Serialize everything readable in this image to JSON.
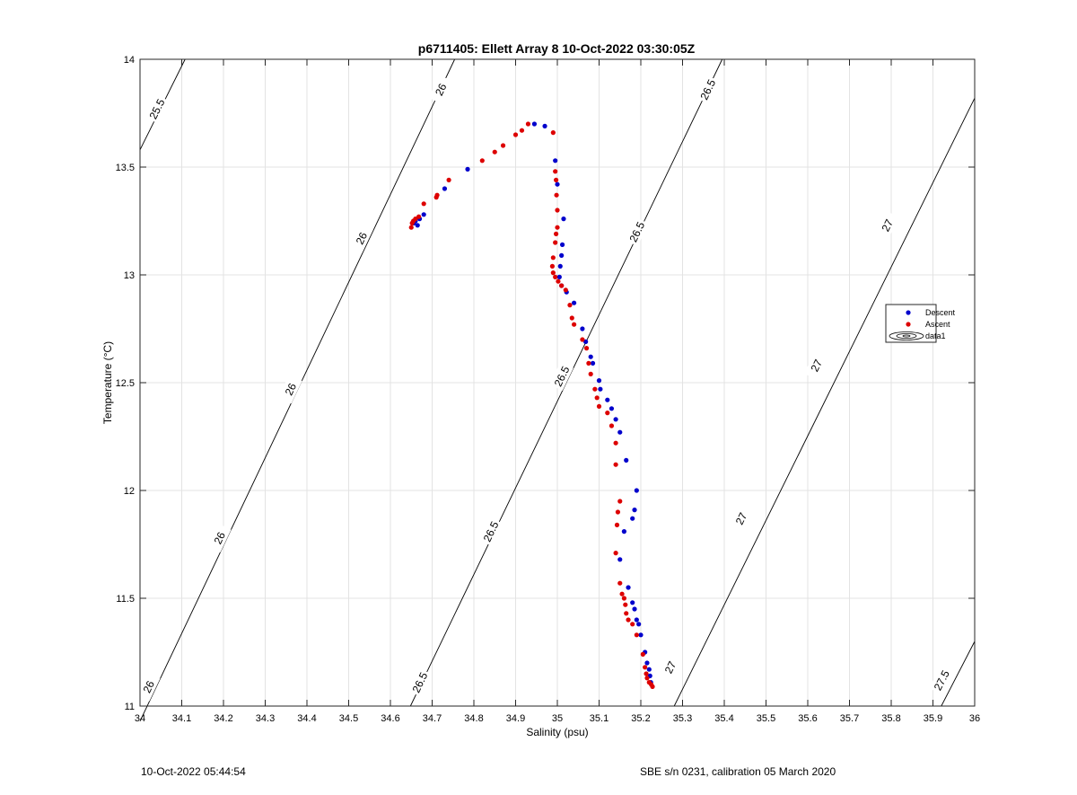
{
  "chart_data": {
    "type": "scatter",
    "title": "p6711405: Ellett Array 8 10-Oct-2022 03:30:05Z",
    "xlabel": "Salinity (psu)",
    "ylabel": "Temperature (°C)",
    "xlim": [
      34,
      36
    ],
    "ylim": [
      11,
      14
    ],
    "xticks": [
      34,
      34.1,
      34.2,
      34.3,
      34.4,
      34.5,
      34.6,
      34.7,
      34.8,
      34.9,
      35,
      35.1,
      35.2,
      35.3,
      35.4,
      35.5,
      35.6,
      35.7,
      35.8,
      35.9,
      36
    ],
    "xtick_labels": [
      "34",
      "34.1",
      "34.2",
      "34.3",
      "34.4",
      "34.5",
      "34.6",
      "34.7",
      "34.8",
      "34.9",
      "35",
      "35.1",
      "35.2",
      "35.3",
      "35.4",
      "35.5",
      "35.6",
      "35.7",
      "35.8",
      "35.9",
      "36"
    ],
    "yticks": [
      11,
      11.5,
      12,
      12.5,
      13,
      13.5,
      14
    ],
    "ytick_labels": [
      "11",
      "11.5",
      "12",
      "12.5",
      "13",
      "13.5",
      "14"
    ],
    "grid": true,
    "legend_position": "right",
    "legend": [
      "Descent",
      "Ascent",
      "data1"
    ],
    "colors": {
      "descent": "#0000cc",
      "ascent": "#dd0000",
      "contour": "#000000",
      "grid": "#e3e3e3"
    },
    "contours": [
      {
        "level_label": "25.5",
        "points": [
          [
            34.0,
            13.58
          ],
          [
            34.108,
            14.0
          ]
        ],
        "labels": [
          [
            34.04,
            13.77
          ]
        ]
      },
      {
        "level_label": "26",
        "points": [
          [
            34.0,
            10.93
          ],
          [
            34.754,
            14.0
          ]
        ],
        "labels": [
          [
            34.02,
            11.09
          ],
          [
            34.19,
            11.78
          ],
          [
            34.36,
            12.47
          ],
          [
            34.53,
            13.17
          ],
          [
            34.72,
            13.86
          ]
        ]
      },
      {
        "level_label": "26.5",
        "points": [
          [
            34.648,
            11.0
          ],
          [
            35.395,
            14.0
          ]
        ],
        "labels": [
          [
            34.67,
            11.11
          ],
          [
            34.84,
            11.81
          ],
          [
            35.01,
            12.53
          ],
          [
            35.19,
            13.2
          ],
          [
            35.36,
            13.86
          ]
        ]
      },
      {
        "level_label": "27",
        "points": [
          [
            35.28,
            11.0
          ],
          [
            36.0,
            13.82
          ]
        ],
        "labels": [
          [
            35.27,
            11.18
          ],
          [
            35.44,
            11.87
          ],
          [
            35.62,
            12.58
          ],
          [
            35.79,
            13.23
          ]
        ]
      },
      {
        "level_label": "27.5",
        "points": [
          [
            35.92,
            11.0
          ],
          [
            36.0,
            11.3
          ]
        ],
        "labels": [
          [
            35.92,
            11.12
          ]
        ]
      }
    ],
    "series": [
      {
        "name": "Descent",
        "points": [
          [
            34.656,
            13.24
          ],
          [
            34.66,
            13.25
          ],
          [
            34.665,
            13.23
          ],
          [
            34.67,
            13.26
          ],
          [
            34.68,
            13.28
          ],
          [
            34.73,
            13.4
          ],
          [
            34.785,
            13.49
          ],
          [
            34.945,
            13.7
          ],
          [
            34.97,
            13.69
          ],
          [
            34.995,
            13.53
          ],
          [
            35.0,
            13.42
          ],
          [
            35.015,
            13.26
          ],
          [
            35.012,
            13.14
          ],
          [
            35.01,
            13.09
          ],
          [
            35.007,
            13.04
          ],
          [
            35.005,
            12.99
          ],
          [
            35.01,
            12.95
          ],
          [
            35.022,
            12.92
          ],
          [
            35.04,
            12.87
          ],
          [
            35.06,
            12.75
          ],
          [
            35.068,
            12.69
          ],
          [
            35.08,
            12.62
          ],
          [
            35.085,
            12.59
          ],
          [
            35.1,
            12.51
          ],
          [
            35.103,
            12.47
          ],
          [
            35.12,
            12.42
          ],
          [
            35.13,
            12.38
          ],
          [
            35.14,
            12.33
          ],
          [
            35.15,
            12.27
          ],
          [
            35.165,
            12.14
          ],
          [
            35.19,
            12.0
          ],
          [
            35.185,
            11.91
          ],
          [
            35.18,
            11.87
          ],
          [
            35.16,
            11.81
          ],
          [
            35.15,
            11.68
          ],
          [
            35.17,
            11.55
          ],
          [
            35.18,
            11.48
          ],
          [
            35.185,
            11.45
          ],
          [
            35.19,
            11.4
          ],
          [
            35.195,
            11.38
          ],
          [
            35.2,
            11.33
          ],
          [
            35.21,
            11.25
          ],
          [
            35.215,
            11.2
          ],
          [
            35.22,
            11.17
          ],
          [
            35.222,
            11.14
          ],
          [
            35.224,
            11.11
          ]
        ]
      },
      {
        "name": "Ascent",
        "points": [
          [
            34.65,
            13.22
          ],
          [
            34.652,
            13.24
          ],
          [
            34.655,
            13.25
          ],
          [
            34.66,
            13.26
          ],
          [
            34.668,
            13.27
          ],
          [
            34.68,
            13.33
          ],
          [
            34.71,
            13.36
          ],
          [
            34.712,
            13.37
          ],
          [
            34.74,
            13.44
          ],
          [
            34.82,
            13.53
          ],
          [
            34.85,
            13.57
          ],
          [
            34.87,
            13.6
          ],
          [
            34.9,
            13.65
          ],
          [
            34.915,
            13.67
          ],
          [
            34.93,
            13.7
          ],
          [
            34.99,
            13.66
          ],
          [
            34.995,
            13.48
          ],
          [
            34.997,
            13.44
          ],
          [
            34.998,
            13.37
          ],
          [
            35.0,
            13.3
          ],
          [
            35.0,
            13.22
          ],
          [
            34.997,
            13.19
          ],
          [
            34.995,
            13.15
          ],
          [
            34.99,
            13.08
          ],
          [
            34.988,
            13.04
          ],
          [
            34.99,
            13.01
          ],
          [
            34.995,
            12.99
          ],
          [
            35.002,
            12.97
          ],
          [
            35.01,
            12.95
          ],
          [
            35.02,
            12.93
          ],
          [
            35.03,
            12.86
          ],
          [
            35.035,
            12.8
          ],
          [
            35.04,
            12.77
          ],
          [
            35.06,
            12.7
          ],
          [
            35.07,
            12.66
          ],
          [
            35.075,
            12.59
          ],
          [
            35.08,
            12.54
          ],
          [
            35.09,
            12.47
          ],
          [
            35.095,
            12.43
          ],
          [
            35.1,
            12.39
          ],
          [
            35.12,
            12.36
          ],
          [
            35.13,
            12.3
          ],
          [
            35.14,
            12.22
          ],
          [
            35.14,
            12.12
          ],
          [
            35.15,
            11.95
          ],
          [
            35.145,
            11.9
          ],
          [
            35.143,
            11.84
          ],
          [
            35.14,
            11.71
          ],
          [
            35.15,
            11.57
          ],
          [
            35.155,
            11.52
          ],
          [
            35.16,
            11.5
          ],
          [
            35.163,
            11.47
          ],
          [
            35.165,
            11.43
          ],
          [
            35.17,
            11.4
          ],
          [
            35.18,
            11.38
          ],
          [
            35.19,
            11.33
          ],
          [
            35.205,
            11.24
          ],
          [
            35.21,
            11.18
          ],
          [
            35.213,
            11.15
          ],
          [
            35.215,
            11.13
          ],
          [
            35.22,
            11.11
          ],
          [
            35.225,
            11.1
          ],
          [
            35.228,
            11.09
          ]
        ]
      }
    ]
  },
  "footer": {
    "left": "10-Oct-2022 05:44:54",
    "right": "SBE s/n 0231, calibration 05 March 2020"
  }
}
